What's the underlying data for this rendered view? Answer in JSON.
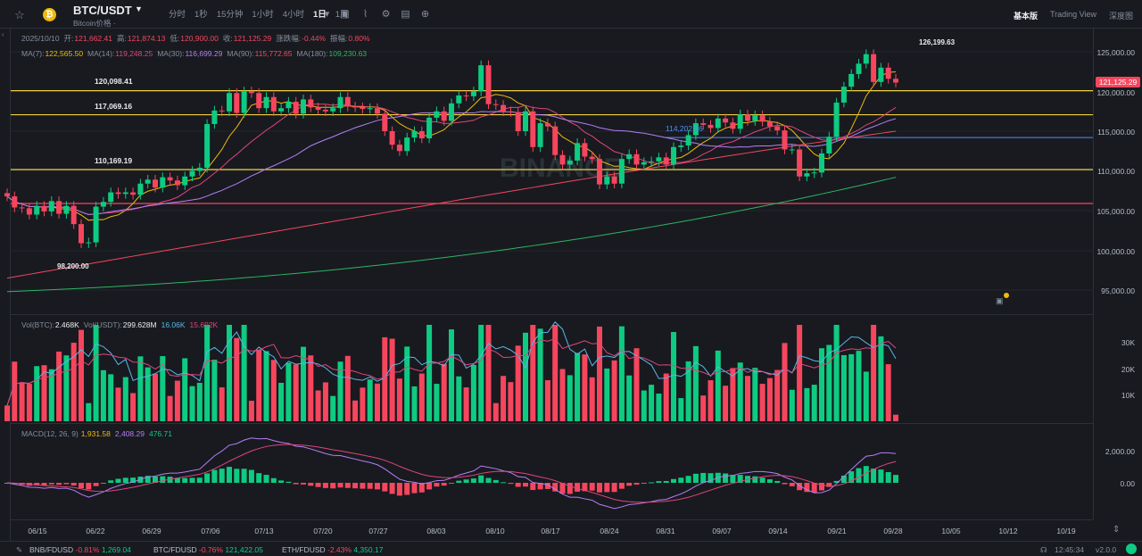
{
  "header": {
    "symbol": "BTC/USDT",
    "subtitle": "Bitcoin价格 ·",
    "coin_icon": "bitcoin-icon",
    "intervals": [
      "分时",
      "1秒",
      "15分钟",
      "1小时",
      "4小时",
      "1日",
      "1周"
    ],
    "active_interval": "1日",
    "view_tabs": [
      "基本版",
      "Trading View",
      "深度图"
    ],
    "active_view": "基本版"
  },
  "ohlc": {
    "date": "2025/10/10",
    "open_label": "开:",
    "open": "121,662.41",
    "high_label": "高:",
    "high": "121,874.13",
    "low_label": "低:",
    "low": "120,900.00",
    "close_label": "收:",
    "close": "121,125.29",
    "change_label": "涨跌幅:",
    "change": "-0.44%",
    "amp_label": "振幅:",
    "amp": "0.80%"
  },
  "ma": {
    "ma7_label": "MA(7):",
    "ma7": "122,565.50",
    "ma14_label": "MA(14):",
    "ma14": "119,248.25",
    "ma30_label": "MA(30):",
    "ma30": "116,699.29",
    "ma90_label": "MA(90):",
    "ma90": "115,772.65",
    "ma180_label": "MA(180):",
    "ma180": "109,230.63"
  },
  "vol": {
    "btc_label": "Vol(BTC):",
    "btc": "2.468K",
    "usdt_label": "Vol(USDT):",
    "usdt": "299.628M",
    "ma1": "16.06K",
    "ma2": "15.692K"
  },
  "macd": {
    "label": "MACD(12, 26, 9)",
    "v1": "1,931.58",
    "v2": "2,408.29",
    "v3": "476.71"
  },
  "price_axis": [
    "125,000.00",
    "120,000.00",
    "115,000.00",
    "110,000.00",
    "105,000.00",
    "100,000.00",
    "95,000.00"
  ],
  "vol_axis": [
    "30K",
    "20K",
    "10K"
  ],
  "macd_axis": [
    "2,000.00",
    "0.00"
  ],
  "current_price": "121,125.29",
  "levels": {
    "l1": "120,098.41",
    "l2": "117,069.16",
    "l3": "110,169.19",
    "l4": "114,202.26",
    "high_mark": "126,199.63",
    "low_mark": "98,200.00"
  },
  "x_axis": [
    "06/15",
    "06/22",
    "06/29",
    "07/06",
    "07/13",
    "07/20",
    "07/27",
    "08/03",
    "08/10",
    "08/17",
    "08/24",
    "08/31",
    "09/07",
    "09/14",
    "09/21",
    "09/28",
    "10/05",
    "10/12",
    "10/19"
  ],
  "tickers": [
    {
      "sym": "BNB/FDUSD",
      "chg": "-0.81%",
      "price": "1,269.04"
    },
    {
      "sym": "BTC/FDUSD",
      "chg": "-0.76%",
      "price": "121,422.05"
    },
    {
      "sym": "ETH/FDUSD",
      "chg": "-2.43%",
      "price": "4,350.17"
    }
  ],
  "status": {
    "time": "12:45:34",
    "version": "v2.0.0"
  },
  "watermark": "BINANCE",
  "colors": {
    "up": "#0ecb81",
    "down": "#f6465d",
    "accent": "#f0b90b",
    "bg": "#181a20"
  }
}
